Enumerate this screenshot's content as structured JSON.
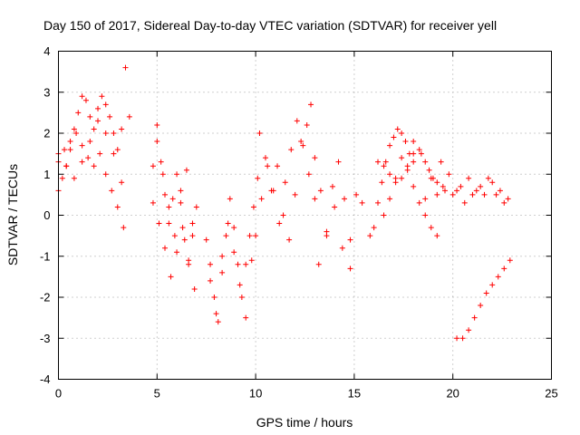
{
  "chart_data": {
    "type": "scatter",
    "title": "Day 150 of 2017, Sidereal Day-to-day VTEC variation (SDTVAR) for receiver yell",
    "xlabel": "GPS time / hours",
    "ylabel": "SDTVAR / TECUs",
    "xlim": [
      0,
      25
    ],
    "ylim": [
      -4,
      4
    ],
    "x_ticks": [
      "0",
      "5",
      "10",
      "15",
      "20",
      "25"
    ],
    "y_ticks": [
      "-4",
      "-3",
      "-2",
      "-1",
      "0",
      "1",
      "2",
      "3",
      "4"
    ],
    "grid": true,
    "marker": "+",
    "color": "#ff0000",
    "series": [
      {
        "name": "SDTVAR",
        "tracks": [
          {
            "x": [
              0.0,
              0.2,
              0.4,
              0.6,
              0.8,
              1.0,
              1.2,
              1.4,
              1.6,
              1.8,
              2.0,
              2.2,
              2.4,
              2.6,
              2.8,
              3.0,
              3.2,
              3.4,
              3.6
            ],
            "y": [
              0.6,
              0.9,
              1.2,
              1.6,
              2.1,
              2.5,
              2.9,
              2.8,
              2.4,
              2.1,
              2.6,
              2.9,
              2.7,
              2.4,
              2.0,
              1.6,
              2.1,
              3.6,
              2.4
            ]
          },
          {
            "x": [
              0.0,
              0.3,
              0.6,
              0.9,
              1.2,
              1.5,
              1.8,
              2.1,
              2.4,
              2.7,
              3.0,
              3.3
            ],
            "y": [
              1.3,
              1.6,
              1.8,
              2.0,
              1.7,
              1.4,
              1.2,
              1.5,
              1.0,
              0.6,
              0.2,
              -0.3
            ]
          },
          {
            "x": [
              0.0,
              0.4,
              0.8,
              1.2,
              1.6,
              2.0,
              2.4,
              2.8,
              3.2
            ],
            "y": [
              1.5,
              1.2,
              0.9,
              1.3,
              1.8,
              2.3,
              2.0,
              1.5,
              0.8
            ]
          },
          {
            "x": [
              4.8,
              5.0,
              5.2,
              5.4,
              5.6,
              5.8,
              6.0,
              6.2,
              6.4,
              6.6,
              6.8,
              7.0
            ],
            "y": [
              1.2,
              1.8,
              1.3,
              0.5,
              -0.2,
              0.4,
              1.0,
              0.3,
              -0.6,
              -1.2,
              -0.5,
              0.2
            ]
          },
          {
            "x": [
              4.8,
              5.1,
              5.4,
              5.7,
              6.0,
              6.3,
              6.6,
              6.9
            ],
            "y": [
              0.3,
              -0.2,
              -0.8,
              -1.5,
              -0.9,
              -0.3,
              -1.1,
              -1.8
            ]
          },
          {
            "x": [
              5.0,
              5.3,
              5.6,
              5.9,
              6.2,
              6.5,
              6.8
            ],
            "y": [
              2.2,
              1.0,
              0.2,
              -0.5,
              0.6,
              1.1,
              -0.2
            ]
          },
          {
            "x": [
              7.5,
              7.7,
              7.9,
              8.1,
              8.3,
              8.5,
              8.7,
              8.9,
              9.1,
              9.3,
              9.5,
              9.7,
              9.9,
              10.1
            ],
            "y": [
              -0.6,
              -1.2,
              -2.0,
              -2.6,
              -1.4,
              -0.5,
              0.4,
              -0.3,
              -1.2,
              -2.0,
              -1.2,
              -0.5,
              0.2,
              0.9
            ]
          },
          {
            "x": [
              7.7,
              8.0,
              8.3,
              8.6,
              8.9,
              9.2,
              9.5,
              9.8
            ],
            "y": [
              -1.6,
              -2.4,
              -1.0,
              -0.2,
              -0.9,
              -1.7,
              -2.5,
              -1.1
            ]
          },
          {
            "x": [
              10.0,
              10.3,
              10.6,
              10.9,
              11.2,
              11.5,
              11.8,
              12.1,
              12.4,
              12.7,
              13.0
            ],
            "y": [
              -0.5,
              0.4,
              1.2,
              0.6,
              -0.2,
              0.8,
              1.6,
              2.3,
              1.7,
              1.0,
              0.4
            ]
          },
          {
            "x": [
              10.2,
              10.5,
              10.8,
              11.1,
              11.4,
              11.7,
              12.0,
              12.3,
              12.6
            ],
            "y": [
              2.0,
              1.4,
              0.6,
              1.2,
              0.0,
              -0.6,
              0.5,
              1.8,
              2.2
            ]
          },
          {
            "x": [
              12.8,
              13.0,
              13.3,
              13.6,
              13.9,
              14.2,
              14.5,
              14.8,
              15.1,
              15.4
            ],
            "y": [
              2.7,
              1.4,
              0.6,
              -0.4,
              0.7,
              1.3,
              0.4,
              -0.6,
              0.5,
              0.3
            ]
          },
          {
            "x": [
              13.2,
              13.6,
              14.0,
              14.4,
              14.8
            ],
            "y": [
              -1.2,
              -0.5,
              0.2,
              -0.8,
              -1.3
            ]
          },
          {
            "x": [
              15.8,
              16.0,
              16.2,
              16.4,
              16.6,
              16.8,
              17.0,
              17.2,
              17.4,
              17.6,
              17.8,
              18.0
            ],
            "y": [
              -0.5,
              -0.3,
              0.3,
              0.8,
              1.3,
              1.7,
              1.9,
              2.1,
              2.0,
              1.8,
              1.5,
              1.3
            ]
          },
          {
            "x": [
              16.2,
              16.5,
              16.8,
              17.1,
              17.4,
              17.7,
              18.0,
              18.3,
              18.6,
              18.9,
              19.2,
              19.5
            ],
            "y": [
              1.3,
              1.2,
              1.0,
              0.8,
              0.9,
              1.2,
              1.5,
              1.6,
              1.3,
              0.9,
              0.5,
              0.7
            ]
          },
          {
            "x": [
              16.5,
              16.8,
              17.1,
              17.4,
              17.7,
              18.0,
              18.3,
              18.6,
              18.9,
              19.2
            ],
            "y": [
              0.0,
              0.4,
              0.9,
              1.4,
              1.1,
              0.7,
              0.3,
              0.0,
              -0.3,
              -0.5
            ]
          },
          {
            "x": [
              18.0,
              18.4,
              18.8,
              19.2,
              19.6,
              20.0,
              20.4,
              20.8,
              21.2,
              21.6,
              22.0,
              22.4,
              22.8
            ],
            "y": [
              1.8,
              1.5,
              1.1,
              0.8,
              0.6,
              0.5,
              0.7,
              0.9,
              0.6,
              0.5,
              0.8,
              0.6,
              0.4
            ]
          },
          {
            "x": [
              18.6,
              19.0,
              19.4,
              19.8,
              20.2,
              20.6,
              21.0,
              21.4,
              21.8,
              22.2,
              22.6
            ],
            "y": [
              0.4,
              0.9,
              1.3,
              1.0,
              0.6,
              0.3,
              0.5,
              0.7,
              0.9,
              0.5,
              0.3
            ]
          },
          {
            "x": [
              20.2,
              20.5,
              20.8,
              21.1,
              21.4,
              21.7,
              22.0,
              22.3,
              22.6,
              22.9
            ],
            "y": [
              -3.0,
              -3.0,
              -2.8,
              -2.5,
              -2.2,
              -1.9,
              -1.7,
              -1.5,
              -1.3,
              -1.1
            ]
          }
        ]
      }
    ]
  }
}
